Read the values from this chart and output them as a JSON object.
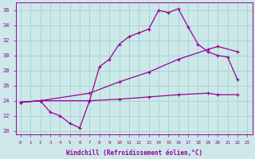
{
  "xlabel": "Windchill (Refroidissement éolien,°C)",
  "bg_color": "#cce8e8",
  "grid_color": "#aad4d4",
  "line_color": "#990099",
  "ylim": [
    19.5,
    37.0
  ],
  "xlim": [
    -0.5,
    23.5
  ],
  "yticks": [
    20,
    22,
    24,
    26,
    28,
    30,
    32,
    34,
    36
  ],
  "xticks": [
    0,
    1,
    2,
    3,
    4,
    5,
    6,
    7,
    8,
    9,
    10,
    11,
    12,
    13,
    14,
    15,
    16,
    17,
    18,
    19,
    20,
    21,
    22,
    23
  ],
  "line1_x": [
    0,
    2,
    3,
    4,
    5,
    6,
    7,
    8,
    9,
    10,
    11,
    12,
    13,
    14,
    15,
    16,
    17,
    18,
    19,
    20,
    21,
    22
  ],
  "line1_y": [
    23.8,
    24.0,
    22.5,
    22.0,
    21.0,
    20.4,
    24.0,
    28.5,
    29.5,
    31.5,
    32.5,
    33.0,
    33.5,
    36.0,
    35.7,
    36.2,
    33.8,
    31.5,
    30.5,
    30.0,
    29.8,
    26.8
  ],
  "line2_x": [
    0,
    2,
    7,
    10,
    13,
    16,
    19,
    20,
    22
  ],
  "line2_y": [
    23.8,
    24.0,
    25.0,
    26.5,
    27.8,
    29.5,
    30.8,
    31.2,
    30.5
  ],
  "line3_x": [
    0,
    2,
    7,
    10,
    13,
    16,
    19,
    20,
    22
  ],
  "line3_y": [
    23.8,
    24.0,
    24.0,
    24.2,
    24.5,
    24.8,
    25.0,
    24.8,
    24.8
  ]
}
